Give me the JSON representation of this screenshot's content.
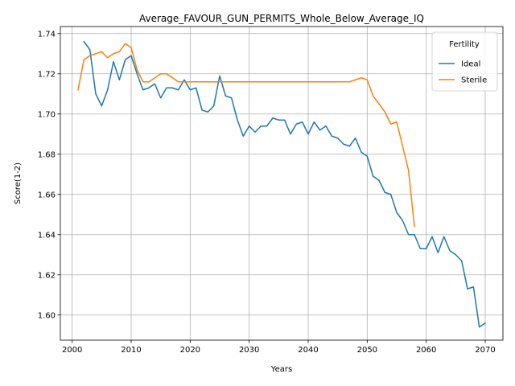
{
  "chart_data": {
    "type": "line",
    "title": "Average_FAVOUR_GUN_PERMITS_Whole_Below_Average_IQ",
    "xlabel": "Years",
    "ylabel": "Score(1-2)",
    "xlim": [
      1998,
      2073
    ],
    "ylim": [
      1.5875,
      1.7435
    ],
    "xticks": [
      2000,
      2010,
      2020,
      2030,
      2040,
      2050,
      2060,
      2070
    ],
    "yticks": [
      1.6,
      1.62,
      1.64,
      1.66,
      1.68,
      1.7,
      1.72,
      1.74
    ],
    "ytick_labels": [
      "1.60",
      "1.62",
      "1.64",
      "1.66",
      "1.68",
      "1.70",
      "1.72",
      "1.74"
    ],
    "grid": true,
    "legend": {
      "title": "Fertility",
      "position": "top-right",
      "entries": [
        "Ideal",
        "Sterile"
      ]
    },
    "series": [
      {
        "name": "Ideal",
        "color": "#1f77b4",
        "x": [
          2002,
          2003,
          2004,
          2005,
          2006,
          2007,
          2008,
          2009,
          2010,
          2011,
          2012,
          2013,
          2014,
          2015,
          2016,
          2017,
          2018,
          2019,
          2020,
          2021,
          2022,
          2023,
          2024,
          2025,
          2026,
          2027,
          2028,
          2029,
          2030,
          2031,
          2032,
          2033,
          2034,
          2035,
          2036,
          2037,
          2038,
          2039,
          2040,
          2041,
          2042,
          2043,
          2044,
          2045,
          2046,
          2047,
          2048,
          2049,
          2050,
          2051,
          2052,
          2053,
          2054,
          2055,
          2056,
          2057,
          2058,
          2059,
          2060,
          2061,
          2062,
          2063,
          2064,
          2065,
          2066,
          2067,
          2068,
          2069,
          2070
        ],
        "y": [
          1.736,
          1.732,
          1.71,
          1.704,
          1.712,
          1.726,
          1.717,
          1.727,
          1.729,
          1.72,
          1.712,
          1.713,
          1.715,
          1.708,
          1.713,
          1.713,
          1.712,
          1.717,
          1.712,
          1.713,
          1.702,
          1.701,
          1.704,
          1.719,
          1.709,
          1.708,
          1.697,
          1.689,
          1.694,
          1.691,
          1.694,
          1.694,
          1.698,
          1.697,
          1.697,
          1.69,
          1.695,
          1.696,
          1.69,
          1.696,
          1.692,
          1.694,
          1.689,
          1.688,
          1.685,
          1.684,
          1.688,
          1.681,
          1.679,
          1.669,
          1.667,
          1.661,
          1.66,
          1.651,
          1.647,
          1.64,
          1.64,
          1.633,
          1.633,
          1.639,
          1.631,
          1.639,
          1.632,
          1.63,
          1.627,
          1.613,
          1.614,
          1.594,
          1.596
        ]
      },
      {
        "name": "Sterile",
        "color": "#ff7f0e",
        "x": [
          2001,
          2002,
          2003,
          2004,
          2005,
          2006,
          2007,
          2008,
          2009,
          2010,
          2011,
          2012,
          2013,
          2014,
          2015,
          2016,
          2017,
          2018,
          2019,
          2020,
          2021,
          2022,
          2023,
          2024,
          2025,
          2026,
          2027,
          2028,
          2029,
          2030,
          2031,
          2032,
          2033,
          2034,
          2035,
          2036,
          2037,
          2038,
          2039,
          2040,
          2041,
          2042,
          2043,
          2044,
          2045,
          2046,
          2047,
          2048,
          2049,
          2050,
          2051,
          2052,
          2053,
          2054,
          2055,
          2056,
          2057,
          2058
        ],
        "y": [
          1.712,
          1.727,
          1.729,
          1.73,
          1.731,
          1.728,
          1.73,
          1.731,
          1.735,
          1.733,
          1.722,
          1.716,
          1.716,
          1.718,
          1.72,
          1.72,
          1.718,
          1.716,
          1.716,
          1.716,
          1.716,
          1.716,
          1.716,
          1.716,
          1.716,
          1.716,
          1.716,
          1.716,
          1.716,
          1.716,
          1.716,
          1.716,
          1.716,
          1.716,
          1.716,
          1.716,
          1.716,
          1.716,
          1.716,
          1.716,
          1.716,
          1.716,
          1.716,
          1.716,
          1.716,
          1.716,
          1.716,
          1.717,
          1.718,
          1.717,
          1.709,
          1.705,
          1.701,
          1.695,
          1.696,
          1.684,
          1.672,
          1.644
        ]
      }
    ]
  }
}
